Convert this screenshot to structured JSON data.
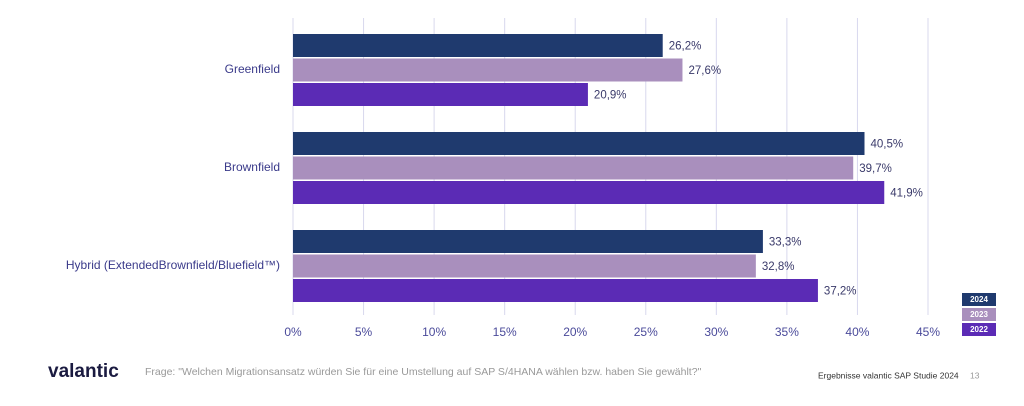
{
  "chart_data": {
    "type": "barh",
    "categories": [
      "Greenfield",
      "Brownfield",
      "Hybrid  (ExtendedBrownfield/Bluefield™)"
    ],
    "series": [
      {
        "name": "2024",
        "color": "#1f3a6e",
        "values": [
          26.2,
          40.5,
          33.3
        ],
        "value_labels": [
          "26,2%",
          "40,5%",
          "33,3%"
        ]
      },
      {
        "name": "2023",
        "color": "#a98fbd",
        "values": [
          27.6,
          39.7,
          32.8
        ],
        "value_labels": [
          "27,6%",
          "39,7%",
          "32,8%"
        ]
      },
      {
        "name": "2022",
        "color": "#5b2bb5",
        "values": [
          20.9,
          41.9,
          37.2
        ],
        "value_labels": [
          "20,9%",
          "41,9%",
          "37,2%"
        ]
      }
    ],
    "xlim": [
      0,
      45
    ],
    "xticks": [
      {
        "value": 0,
        "label": "0%"
      },
      {
        "value": 5,
        "label": "5%"
      },
      {
        "value": 10,
        "label": "10%"
      },
      {
        "value": 15,
        "label": "15%"
      },
      {
        "value": 20,
        "label": "20%"
      },
      {
        "value": 25,
        "label": "25%"
      },
      {
        "value": 30,
        "label": "30%"
      },
      {
        "value": 35,
        "label": "35%"
      },
      {
        "value": 40,
        "label": "40%"
      },
      {
        "value": 45,
        "label": "45%"
      }
    ],
    "grid": true,
    "legend": "lower right"
  },
  "footer": {
    "logo": "valantic",
    "question": "Frage: \"Welchen Migrationsansatz würden Sie für eine Umstellung auf SAP S/4HANA wählen bzw. haben Sie gewählt?\"",
    "source": "Ergebnisse valantic SAP Studie 2024",
    "page": "13"
  }
}
